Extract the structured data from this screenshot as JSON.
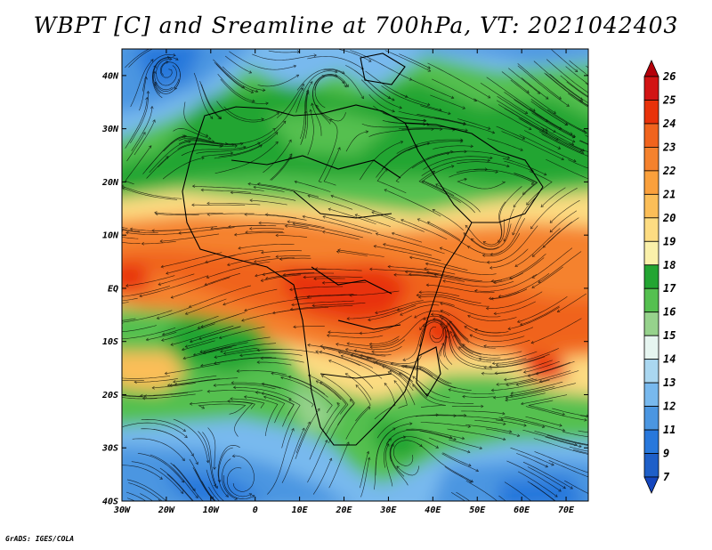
{
  "title": "WBPT [C] and Sreamline at 700hPa, VT: 2021042403",
  "credit": "GrADS: IGES/COLA",
  "map": {
    "lon_labels": [
      "30W",
      "20W",
      "10W",
      "0",
      "10E",
      "20E",
      "30E",
      "40E",
      "50E",
      "60E",
      "70E"
    ],
    "lat_labels": [
      "40N",
      "30N",
      "20N",
      "10N",
      "EQ",
      "10S",
      "20S",
      "30S",
      "40S"
    ],
    "lon_range": [
      -30,
      75
    ],
    "lat_range": [
      -40,
      45
    ]
  },
  "colorbar": {
    "labels": [
      "26",
      "25",
      "24",
      "23",
      "22",
      "21",
      "20",
      "19",
      "18",
      "17",
      "16",
      "15",
      "14",
      "13",
      "12",
      "11",
      "9",
      "7"
    ],
    "colors": [
      "#b4000a",
      "#d21414",
      "#e8320a",
      "#f0641e",
      "#f5822d",
      "#faa03c",
      "#fbbe58",
      "#fddc82",
      "#faf0aa",
      "#23a532",
      "#55c050",
      "#96d28c",
      "#e6f5f0",
      "#aad7f0",
      "#78b9ee",
      "#4b96e1",
      "#2878dc",
      "#1e5fc8",
      "#1446be"
    ]
  }
}
